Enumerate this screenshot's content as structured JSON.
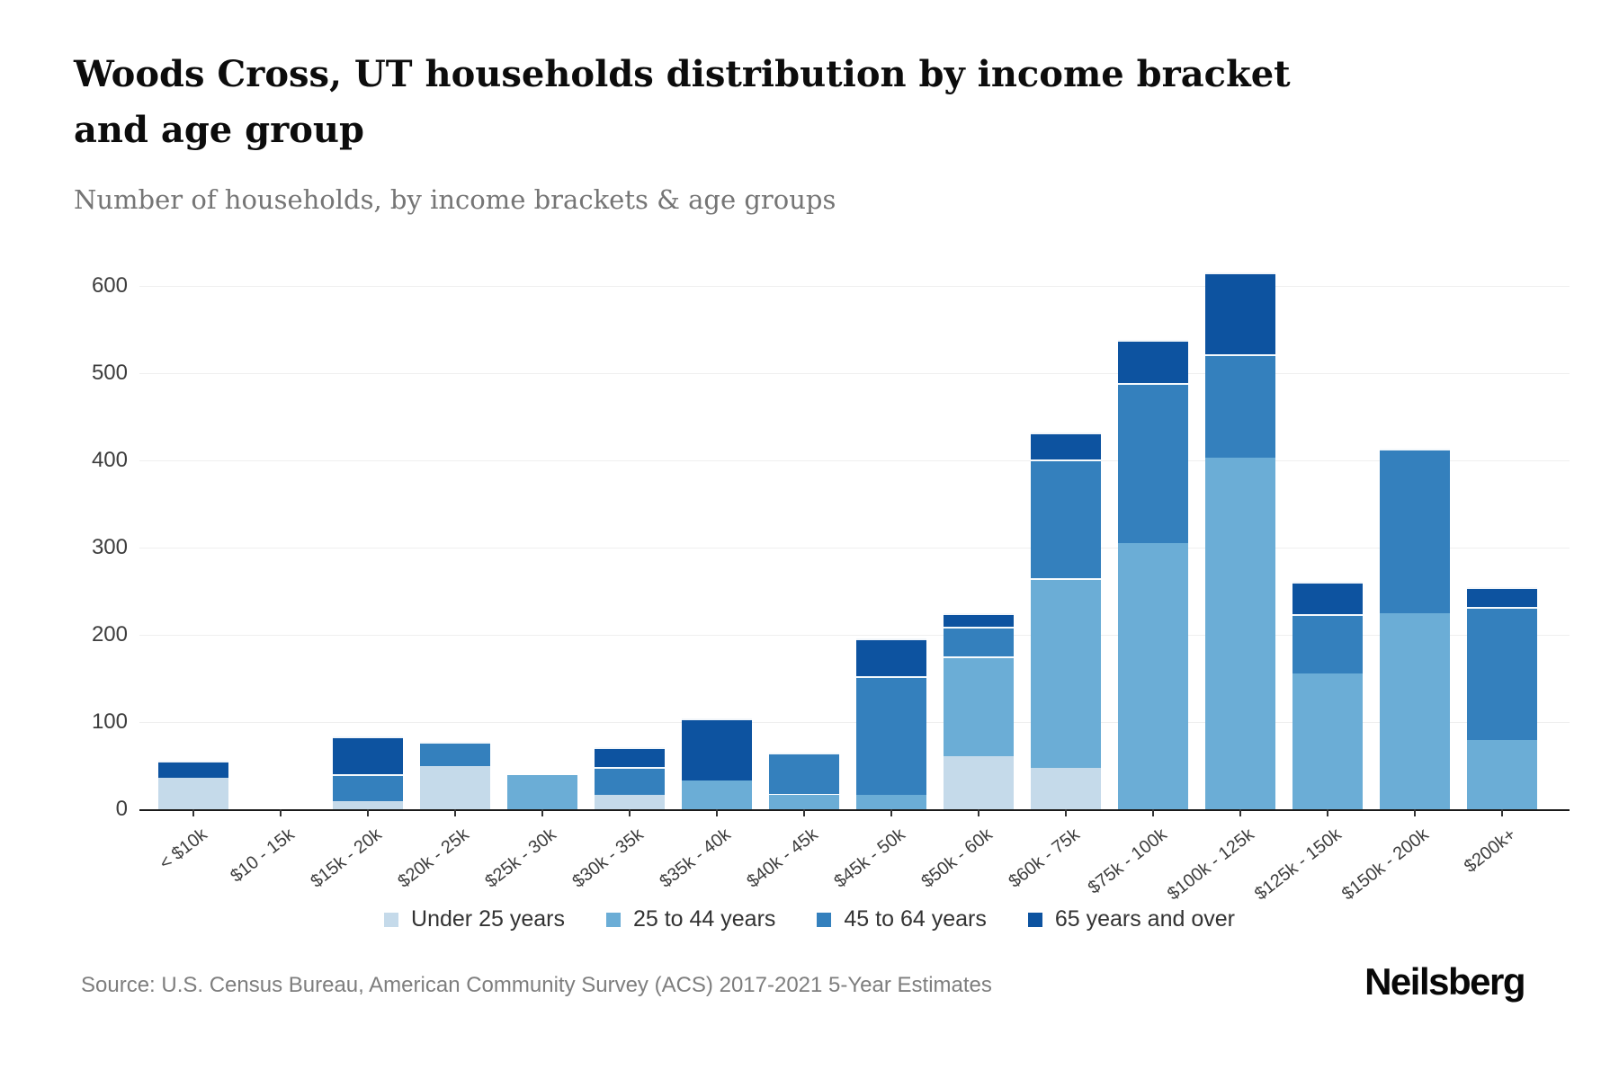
{
  "header": {
    "title": "Woods Cross, UT households distribution by income bracket and age group",
    "subtitle": "Number of households, by income brackets & age groups"
  },
  "footer": {
    "source": "Source: U.S. Census Bureau, American Community Survey (ACS) 2017-2021 5-Year Estimates",
    "brand": "Neilsberg"
  },
  "chart_data": {
    "type": "bar",
    "stacked": true,
    "title": "Woods Cross, UT households distribution by income bracket and age group",
    "subtitle": "Number of households, by income brackets & age groups",
    "xlabel": "",
    "ylabel": "Number of households",
    "ylim": [
      0,
      660
    ],
    "yticks": [
      0,
      100,
      200,
      300,
      400,
      500,
      600
    ],
    "grid": true,
    "legend_position": "bottom",
    "categories": [
      "< $10k",
      "$10 - 15k",
      "$15k - 20k",
      "$20k - 25k",
      "$25k - 30k",
      "$30k - 35k",
      "$35k - 40k",
      "$40k - 45k",
      "$45k - 50k",
      "$50k - 60k",
      "$60k - 75k",
      "$75k - 100k",
      "$100k - 125k",
      "$125k - 150k",
      "$150k - 200k",
      "$200k+"
    ],
    "series": [
      {
        "name": "Under 25 years",
        "color": "#c5daea",
        "values": [
          36,
          0,
          9,
          49,
          0,
          16,
          0,
          0,
          0,
          61,
          47,
          0,
          0,
          0,
          0,
          0
        ]
      },
      {
        "name": "25 to 44 years",
        "color": "#6badd6",
        "values": [
          0,
          0,
          0,
          0,
          39,
          0,
          33,
          17,
          16,
          114,
          218,
          305,
          403,
          156,
          225,
          79
        ]
      },
      {
        "name": "45 to 64 years",
        "color": "#3480bd",
        "values": [
          0,
          0,
          31,
          28,
          0,
          32,
          0,
          48,
          137,
          34,
          136,
          184,
          119,
          68,
          188,
          153
        ]
      },
      {
        "name": "65 years and over",
        "color": "#0d53a0",
        "values": [
          20,
          0,
          44,
          0,
          0,
          23,
          71,
          0,
          43,
          16,
          31,
          49,
          93,
          37,
          0,
          23
        ]
      }
    ],
    "totals": [
      56,
      0,
      84,
      77,
      39,
      71,
      104,
      65,
      196,
      225,
      432,
      538,
      615,
      261,
      413,
      255
    ]
  }
}
